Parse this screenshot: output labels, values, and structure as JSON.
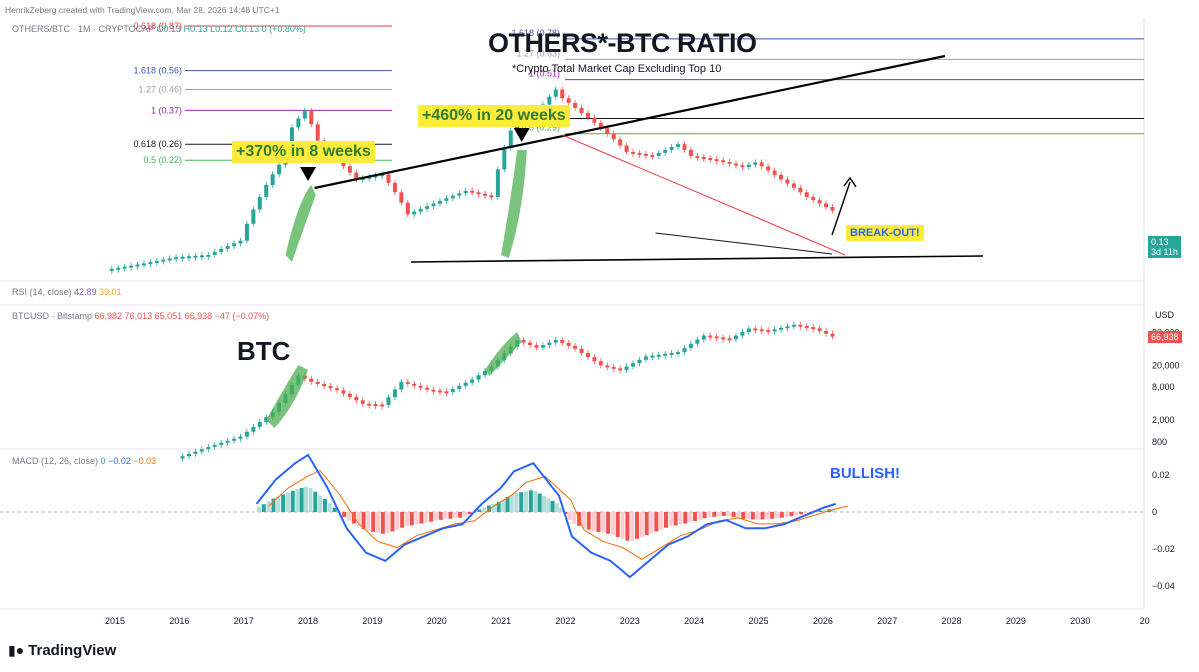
{
  "header": {
    "credit": "HenrikZeberg created with TradingView.com, Mar 28, 2026 14:48 UTC+1"
  },
  "annotations": {
    "main_title": "OTHERS*-BTC RATIO",
    "subtitle": "*Crypto Total Market Cap Excluding Top 10",
    "gain_1": "+370% in 8 weeks",
    "gain_2": "+460% in 20 weeks",
    "breakout": "BREAK-OUT!",
    "btc_label": "BTC",
    "bullish": "BULLISH!"
  },
  "panes": {
    "others_btc": {
      "symbol": "OTHERS/BTC · 1M · CRYPTOCAP",
      "ohlc": "O0.13 H0.13 L0.12 C0.13 0 (+0.80%)",
      "current_price": "0.13",
      "countdown": "3d 11h"
    },
    "rsi": {
      "label": "RSI (14, close)",
      "val1": "42.89",
      "val2": "39.01"
    },
    "btcusd": {
      "symbol": "BTCUSD · Bitstamp",
      "ohlc": "66,982  76,013  65,051  66,938  −47 (−0.07%)",
      "currency": "USD",
      "current_price": "66,938",
      "axis_ticks": [
        "80,000",
        "20,000",
        "8,000",
        "2,000",
        "800"
      ]
    },
    "macd": {
      "label": "MACD (12, 26, close)",
      "v_hist": "0",
      "v_macd": "−0.02",
      "v_signal": "−0.03",
      "axis_ticks": [
        "0.02",
        "0",
        "−0.02",
        "−0.04"
      ]
    }
  },
  "fib_left": [
    {
      "label": "1.618 (0.56)",
      "value": 0.56,
      "color": "#3f51b5"
    },
    {
      "label": "1.27 (0.46)",
      "value": 0.46,
      "color": "#9e9e9e"
    },
    {
      "label": "1 (0.37)",
      "value": 0.37,
      "color": "#9c27b0"
    },
    {
      "label": "0.618 (0.26)",
      "value": 0.26,
      "color": "#131722"
    },
    {
      "label": "0.5 (0.22)",
      "value": 0.22,
      "color": "#4caf50"
    }
  ],
  "fib_right": [
    {
      "label": "1.618 (0.78)",
      "value": 0.78,
      "color": "#3f51b5"
    },
    {
      "label": "1.27 (0.63)",
      "value": 0.63,
      "color": "#9e9e9e"
    },
    {
      "label": "1 (0.51)",
      "value": 0.51,
      "color": "#9c27b0"
    },
    {
      "label": "0.618 (0.34)",
      "value": 0.34,
      "color": "#131722"
    },
    {
      "label": "0.5 (0.29)",
      "value": 0.29,
      "color": "#4caf50"
    }
  ],
  "fib_top_partial": {
    "label": "0.618 (0.87)",
    "value": 0.87,
    "color": "#f23645"
  },
  "colors": {
    "up": "#26a69a",
    "down": "#ef5350",
    "green_highlight": "#4caf50",
    "yellow_label": "#ffeb3b",
    "blue_text": "#2962ff",
    "macd_line": "#2962ff",
    "signal_line": "#ff6d00"
  },
  "chart_data": [
    {
      "type": "line",
      "title": "OTHERS*-BTC RATIO",
      "name": "OTHERS/BTC monthly close (approx.)",
      "x": [
        2014.9,
        2015.5,
        2016.0,
        2016.5,
        2017.0,
        2017.3,
        2017.6,
        2017.8,
        2018.0,
        2018.2,
        2018.5,
        2018.8,
        2019.2,
        2019.6,
        2020.0,
        2020.5,
        2020.9,
        2021.2,
        2021.4,
        2021.6,
        2021.9,
        2022.0,
        2022.3,
        2022.7,
        2023.0,
        2023.4,
        2023.8,
        2024.0,
        2024.4,
        2024.8,
        2025.0,
        2025.4,
        2025.8,
        2026.2
      ],
      "y": [
        0.07,
        0.075,
        0.08,
        0.082,
        0.095,
        0.15,
        0.21,
        0.31,
        0.37,
        0.27,
        0.22,
        0.18,
        0.19,
        0.125,
        0.14,
        0.16,
        0.15,
        0.3,
        0.38,
        0.36,
        0.46,
        0.42,
        0.36,
        0.29,
        0.24,
        0.23,
        0.26,
        0.23,
        0.22,
        0.205,
        0.215,
        0.18,
        0.15,
        0.13
      ],
      "ylim": [
        0.05,
        0.95
      ]
    },
    {
      "type": "line",
      "name": "BTCUSD monthly close (approx., log scale)",
      "x": [
        2016.0,
        2016.5,
        2017.0,
        2017.5,
        2017.9,
        2018.1,
        2018.5,
        2018.9,
        2019.2,
        2019.5,
        2019.9,
        2020.2,
        2020.6,
        2020.9,
        2021.1,
        2021.3,
        2021.6,
        2021.9,
        2022.2,
        2022.6,
        2022.9,
        2023.3,
        2023.8,
        2024.2,
        2024.6,
        2024.9,
        2025.2,
        2025.6,
        2025.9,
        2026.2
      ],
      "y": [
        400,
        650,
        1000,
        2800,
        13000,
        10000,
        7000,
        4000,
        3800,
        10000,
        7200,
        6500,
        11000,
        19000,
        33000,
        58000,
        42000,
        58000,
        40000,
        20000,
        16500,
        29000,
        35000,
        70000,
        60000,
        94000,
        85000,
        110000,
        95000,
        66938
      ],
      "ylim": [
        800,
        100000
      ],
      "log_scale": true
    },
    {
      "type": "bar",
      "name": "MACD histogram (approx.)",
      "x": [
        2017.2,
        2017.5,
        2017.8,
        2018.0,
        2018.3,
        2018.6,
        2018.9,
        2019.2,
        2019.5,
        2019.8,
        2020.1,
        2020.4,
        2020.7,
        2021.0,
        2021.2,
        2021.5,
        2021.7,
        2021.9,
        2022.1,
        2022.4,
        2022.7,
        2023.0,
        2023.3,
        2023.6,
        2023.9,
        2024.2,
        2024.5,
        2024.8,
        2025.1,
        2025.4,
        2025.7,
        2026.0,
        2026.2
      ],
      "values": [
        0.002,
        0.008,
        0.012,
        0.014,
        0.006,
        -0.004,
        -0.01,
        -0.012,
        -0.008,
        -0.006,
        -0.004,
        -0.003,
        0.002,
        0.006,
        0.01,
        0.012,
        0.008,
        0.004,
        -0.006,
        -0.01,
        -0.012,
        -0.016,
        -0.012,
        -0.008,
        -0.006,
        -0.003,
        -0.002,
        -0.004,
        -0.004,
        -0.003,
        -0.001,
        0.001,
        0.002
      ],
      "ylim": [
        -0.045,
        0.03
      ]
    }
  ],
  "x_axis": {
    "ticks": [
      "2015",
      "2016",
      "2017",
      "2018",
      "2019",
      "2020",
      "2021",
      "2022",
      "2023",
      "2024",
      "2025",
      "2026",
      "2027",
      "2028",
      "2029",
      "2030",
      "20"
    ]
  },
  "footer": {
    "brand": "TradingView"
  }
}
